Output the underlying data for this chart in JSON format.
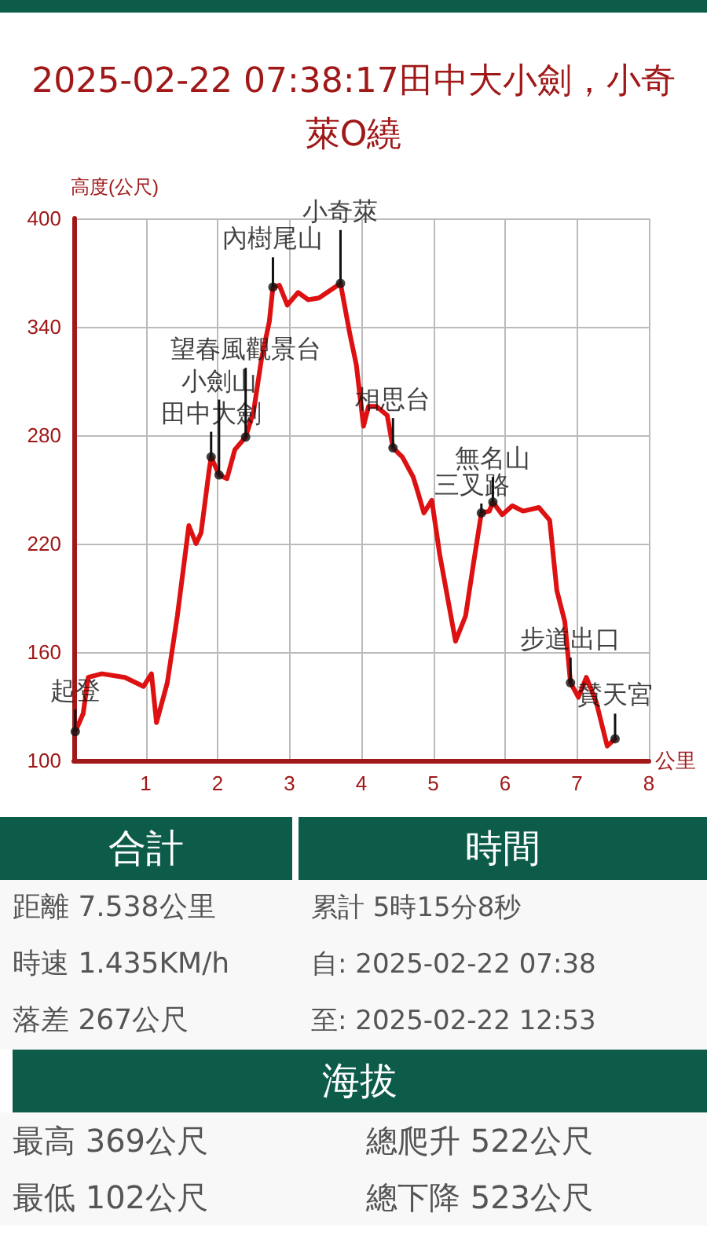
{
  "chart_data": {
    "type": "line",
    "title": "2025-02-22 07:38:17田中大小劍，小奇萊O繞",
    "xlabel": "公里",
    "ylabel": "高度(公尺)",
    "xlim": [
      0,
      8
    ],
    "xticks": [
      1,
      2,
      3,
      4,
      5,
      6,
      7,
      8
    ],
    "ylim": [
      100,
      400
    ],
    "yticks": [
      100,
      160,
      220,
      280,
      340,
      400
    ],
    "grid": true,
    "marker": "none",
    "line_style": "solid",
    "series": [
      {
        "color": "#dd1111",
        "x": [
          0.02,
          0.13,
          0.2,
          0.39,
          0.71,
          0.97,
          1.08,
          1.15,
          1.3,
          1.44,
          1.6,
          1.7,
          1.77,
          1.88,
          1.91,
          2.02,
          2.13,
          2.24,
          2.39,
          2.5,
          2.61,
          2.72,
          2.77,
          2.86,
          2.97,
          3.12,
          3.26,
          3.41,
          3.56,
          3.71,
          3.84,
          3.93,
          4.03,
          4.1,
          4.21,
          4.36,
          4.44,
          4.57,
          4.72,
          4.79,
          4.87,
          4.98,
          5.09,
          5.31,
          5.45,
          5.56,
          5.67,
          5.78,
          5.83,
          5.96,
          6.1,
          6.25,
          6.47,
          6.62,
          6.72,
          6.83,
          6.91,
          7.02,
          7.13,
          7.27,
          7.42,
          7.53
        ],
        "values": [
          116,
          126,
          146,
          148,
          146,
          141,
          148,
          121,
          143,
          180,
          230,
          220,
          226,
          260,
          268,
          258,
          256,
          272,
          279,
          293,
          322,
          343,
          362,
          363,
          352,
          359,
          355,
          356,
          360,
          364,
          336,
          319,
          285,
          296,
          296,
          291,
          273,
          268,
          257,
          248,
          237,
          244,
          214,
          166,
          180,
          209,
          237,
          238,
          243,
          236,
          241,
          238,
          240,
          233,
          194,
          177,
          143,
          135,
          146,
          132,
          108,
          112
        ]
      }
    ],
    "annotations": [
      {
        "text": "起登",
        "x": 0.02,
        "y": 116
      },
      {
        "text": "田中大劍",
        "x": 1.91,
        "y": 268
      },
      {
        "text": "小劍山",
        "x": 2.02,
        "y": 258
      },
      {
        "text": "望春風觀景台",
        "x": 2.39,
        "y": 279
      },
      {
        "text": "內樹尾山",
        "x": 2.77,
        "y": 362
      },
      {
        "text": "小奇萊",
        "x": 3.71,
        "y": 364
      },
      {
        "text": "相思台",
        "x": 4.44,
        "y": 273
      },
      {
        "text": "三叉路",
        "x": 5.67,
        "y": 237
      },
      {
        "text": "無名山",
        "x": 5.83,
        "y": 243
      },
      {
        "text": "步道出口",
        "x": 6.91,
        "y": 143
      },
      {
        "text": "賛天宮",
        "x": 7.53,
        "y": 112
      },
      "合計",
      "時間",
      "距離 7.538公里",
      "時速 1.435KM/h",
      "落差 267公尺",
      "累計 5時15分8秒",
      "自: 2025-02-22 07:38",
      "至: 2025-02-22 12:53",
      "海拔",
      "最高 369公尺",
      "總爬升 522公尺",
      "最低 102公尺",
      "總下降 523公尺"
    ]
  }
}
